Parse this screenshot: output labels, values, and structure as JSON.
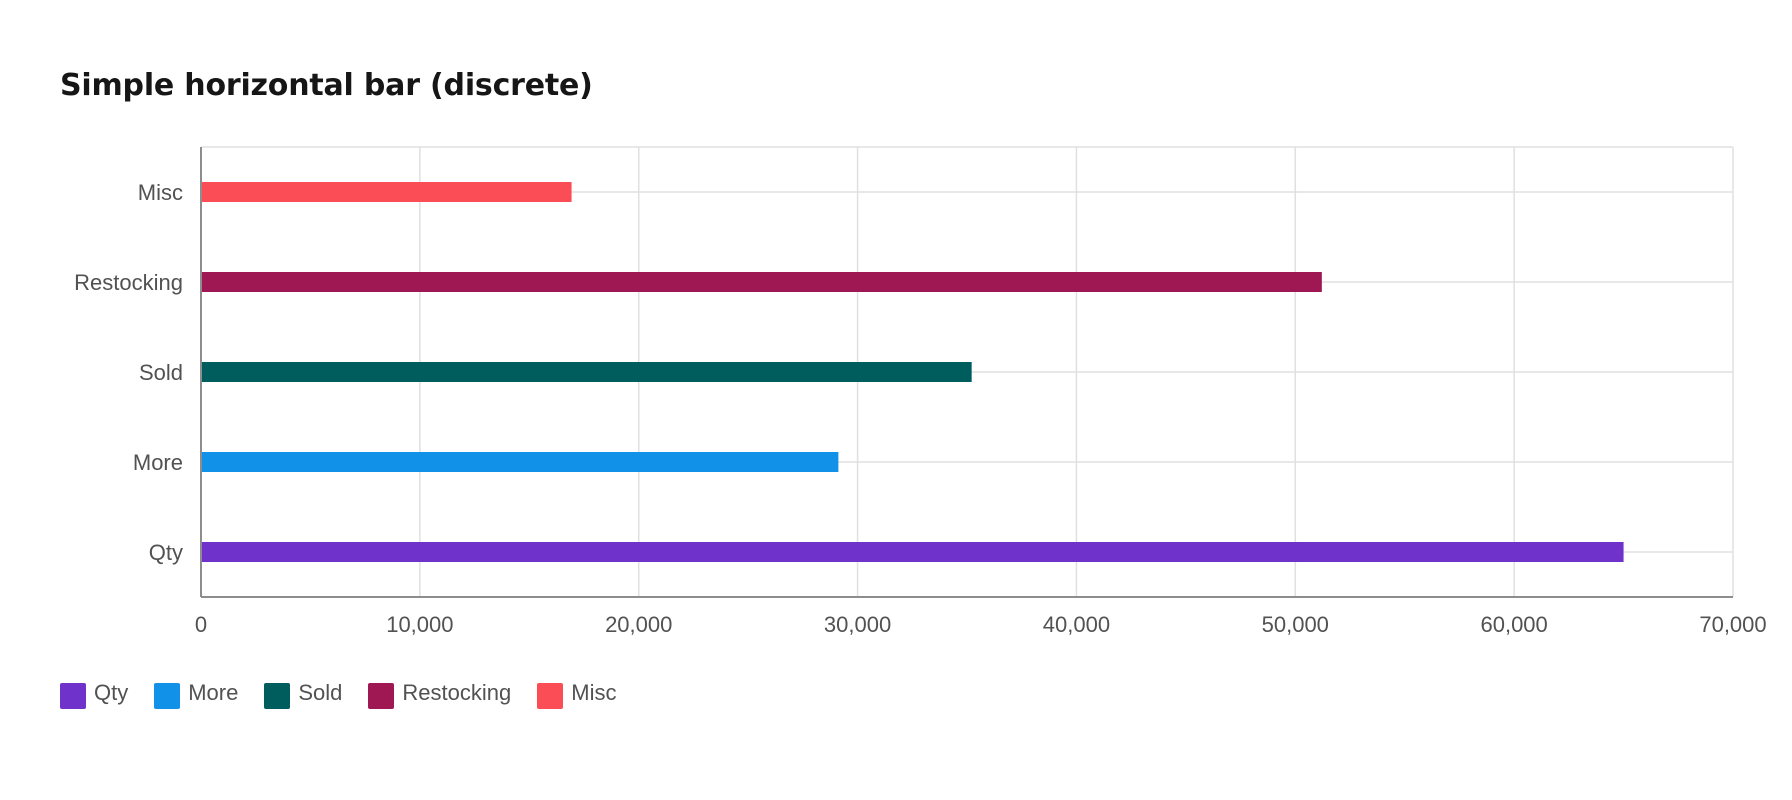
{
  "chart_data": {
    "type": "bar",
    "orientation": "horizontal",
    "title": "Simple horizontal bar (discrete)",
    "categories": [
      "Qty",
      "More",
      "Sold",
      "Restocking",
      "Misc"
    ],
    "values": [
      65000,
      29123,
      35213,
      51213,
      16932
    ],
    "colors": [
      "#6f33cc",
      "#1192e8",
      "#005d5d",
      "#9f1853",
      "#fa4d56"
    ],
    "xlim": [
      0,
      70000
    ],
    "x_ticks": [
      0,
      10000,
      20000,
      30000,
      40000,
      50000,
      60000,
      70000
    ],
    "x_tick_labels": [
      "0",
      "10,000",
      "20,000",
      "30,000",
      "40,000",
      "50,000",
      "60,000",
      "70,000"
    ],
    "xlabel": "",
    "ylabel": "",
    "grid": true,
    "legend": [
      "Qty",
      "More",
      "Sold",
      "Restocking",
      "Misc"
    ],
    "legend_position": "bottom-left"
  }
}
